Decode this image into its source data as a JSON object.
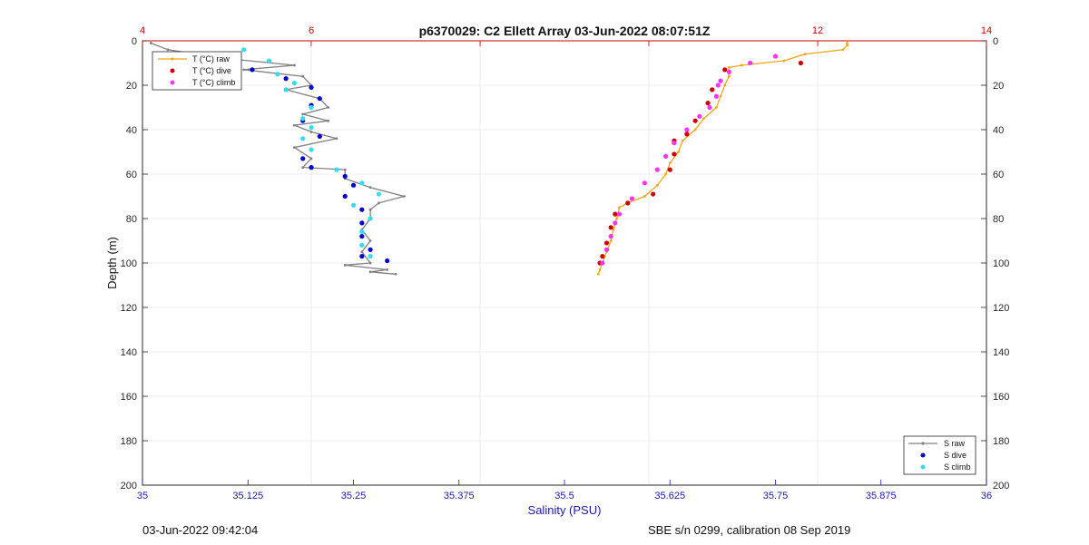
{
  "footer": {
    "timestamp": "03-Jun-2022 09:42:04",
    "sensor": "SBE s/n 0299, calibration 08 Sep 2019"
  },
  "chart_data": {
    "type": "scatter",
    "title": "p6370029: C2 Ellett Array 03-Jun-2022 08:07:51Z",
    "ylabel": "Depth (m)",
    "ylim": [
      0,
      200
    ],
    "y_reversed": true,
    "y_ticks": [
      "0",
      "20",
      "40",
      "60",
      "80",
      "100",
      "120",
      "140",
      "160",
      "180",
      "200"
    ],
    "x_bottom": {
      "label": "Salinity (PSU)",
      "lim": [
        35,
        36
      ],
      "ticks": [
        "35",
        "35.125",
        "35.25",
        "35.375",
        "35.5",
        "35.625",
        "35.75",
        "35.875",
        "36"
      ],
      "color": "#1a1aa6"
    },
    "x_top": {
      "label": "",
      "lim": [
        4,
        14
      ],
      "ticks": [
        "4",
        "6",
        "8",
        "10",
        "12",
        "14"
      ],
      "visible_ticks": [
        "4",
        "6",
        "",
        "",
        "12",
        "14"
      ],
      "color": "#cc0000"
    },
    "grid": true,
    "legends": [
      {
        "position": "top-left",
        "entries": [
          "T (°C) raw",
          "T (°C) dive",
          "T (°C) climb"
        ]
      },
      {
        "position": "bottom-right",
        "entries": [
          "S raw",
          "S dive",
          "S climb"
        ]
      }
    ],
    "colors": {
      "t_raw": "#f0a818",
      "t_dive": "#cc0000",
      "t_climb": "#ff33ff",
      "s_raw": "#808080",
      "s_dive": "#0000cc",
      "s_climb": "#33ddee"
    },
    "series": [
      {
        "name": "T (°C) raw",
        "axis": "top",
        "style": "line",
        "points": [
          [
            12.35,
            1
          ],
          [
            12.35,
            2
          ],
          [
            12.3,
            4
          ],
          [
            11.85,
            6
          ],
          [
            11.6,
            9
          ],
          [
            11.1,
            11
          ],
          [
            10.95,
            12
          ],
          [
            10.95,
            16
          ],
          [
            10.9,
            20
          ],
          [
            10.85,
            25
          ],
          [
            10.8,
            30
          ],
          [
            10.65,
            35
          ],
          [
            10.55,
            40
          ],
          [
            10.4,
            45
          ],
          [
            10.35,
            50
          ],
          [
            10.25,
            55
          ],
          [
            10.2,
            60
          ],
          [
            10.1,
            65
          ],
          [
            9.95,
            70
          ],
          [
            9.75,
            73
          ],
          [
            9.65,
            75
          ],
          [
            9.62,
            80
          ],
          [
            9.58,
            85
          ],
          [
            9.55,
            90
          ],
          [
            9.5,
            95
          ],
          [
            9.45,
            100
          ],
          [
            9.42,
            103
          ],
          [
            9.4,
            105
          ]
        ]
      },
      {
        "name": "T (°C) dive",
        "axis": "top",
        "style": "dots",
        "points": [
          [
            11.8,
            10
          ],
          [
            10.9,
            13
          ],
          [
            10.75,
            22
          ],
          [
            10.7,
            28
          ],
          [
            10.55,
            36
          ],
          [
            10.45,
            42
          ],
          [
            10.3,
            45
          ],
          [
            10.3,
            51
          ],
          [
            10.25,
            58
          ],
          [
            10.05,
            69
          ],
          [
            9.75,
            73
          ],
          [
            9.6,
            78
          ],
          [
            9.55,
            84
          ],
          [
            9.5,
            91
          ],
          [
            9.45,
            97
          ],
          [
            9.42,
            100
          ]
        ]
      },
      {
        "name": "T (°C) climb",
        "axis": "top",
        "style": "dots",
        "points": [
          [
            11.5,
            7
          ],
          [
            11.2,
            10
          ],
          [
            10.95,
            14
          ],
          [
            10.85,
            18
          ],
          [
            10.82,
            20
          ],
          [
            10.8,
            25
          ],
          [
            10.72,
            30
          ],
          [
            10.6,
            34
          ],
          [
            10.45,
            40
          ],
          [
            10.3,
            46
          ],
          [
            10.2,
            52
          ],
          [
            10.1,
            58
          ],
          [
            9.95,
            64
          ],
          [
            9.8,
            71
          ],
          [
            9.65,
            78
          ],
          [
            9.6,
            82
          ],
          [
            9.55,
            88
          ],
          [
            9.5,
            94
          ],
          [
            9.45,
            100
          ]
        ]
      },
      {
        "name": "S raw",
        "axis": "bottom",
        "style": "line",
        "points": [
          [
            35.01,
            1
          ],
          [
            35.03,
            4
          ],
          [
            35.1,
            8
          ],
          [
            35.18,
            11
          ],
          [
            35.12,
            13
          ],
          [
            35.19,
            16
          ],
          [
            35.2,
            20
          ],
          [
            35.17,
            22
          ],
          [
            35.21,
            26
          ],
          [
            35.22,
            30
          ],
          [
            35.19,
            33
          ],
          [
            35.22,
            36
          ],
          [
            35.18,
            38
          ],
          [
            35.2,
            41
          ],
          [
            35.23,
            44
          ],
          [
            35.18,
            48
          ],
          [
            35.2,
            53
          ],
          [
            35.19,
            57
          ],
          [
            35.24,
            58
          ],
          [
            35.24,
            62
          ],
          [
            35.27,
            66
          ],
          [
            35.31,
            70
          ],
          [
            35.28,
            73
          ],
          [
            35.27,
            76
          ],
          [
            35.27,
            80
          ],
          [
            35.26,
            85
          ],
          [
            35.27,
            90
          ],
          [
            35.26,
            95
          ],
          [
            35.27,
            100
          ],
          [
            35.24,
            101
          ],
          [
            35.29,
            103
          ],
          [
            35.27,
            104
          ],
          [
            35.3,
            105
          ]
        ]
      },
      {
        "name": "S dive",
        "axis": "bottom",
        "style": "dots",
        "points": [
          [
            35.2,
            21
          ],
          [
            35.17,
            17
          ],
          [
            35.13,
            13
          ],
          [
            35.21,
            26
          ],
          [
            35.2,
            29
          ],
          [
            35.19,
            36
          ],
          [
            35.21,
            43
          ],
          [
            35.19,
            53
          ],
          [
            35.2,
            57
          ],
          [
            35.24,
            61
          ],
          [
            35.25,
            65
          ],
          [
            35.24,
            70
          ],
          [
            35.26,
            76
          ],
          [
            35.26,
            82
          ],
          [
            35.26,
            88
          ],
          [
            35.27,
            94
          ],
          [
            35.29,
            99
          ],
          [
            35.26,
            97
          ]
        ]
      },
      {
        "name": "S climb",
        "axis": "bottom",
        "style": "dots",
        "points": [
          [
            35.12,
            4
          ],
          [
            35.15,
            9
          ],
          [
            35.16,
            15
          ],
          [
            35.18,
            19
          ],
          [
            35.17,
            22
          ],
          [
            35.2,
            30
          ],
          [
            35.19,
            35
          ],
          [
            35.2,
            39
          ],
          [
            35.19,
            44
          ],
          [
            35.2,
            49
          ],
          [
            35.23,
            58
          ],
          [
            35.26,
            64
          ],
          [
            35.28,
            69
          ],
          [
            35.25,
            74
          ],
          [
            35.27,
            80
          ],
          [
            35.26,
            86
          ],
          [
            35.26,
            92
          ],
          [
            35.27,
            97
          ]
        ]
      }
    ]
  }
}
